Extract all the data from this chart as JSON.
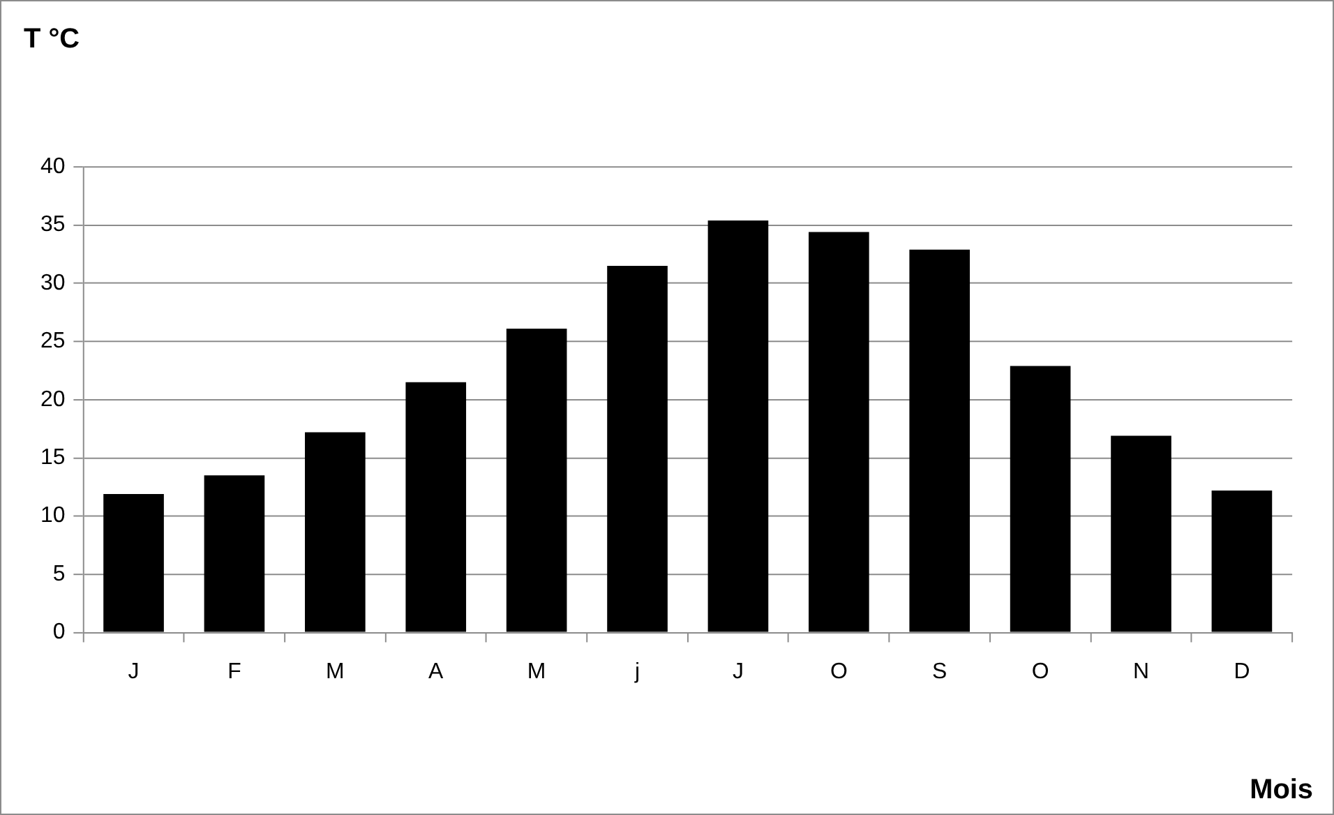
{
  "chart_data": {
    "type": "bar",
    "xlabel": "Mois",
    "ylabel": "T °C",
    "categories": [
      "J",
      "F",
      "M",
      "A",
      "M",
      "j",
      "J",
      "O",
      "S",
      "O",
      "N",
      "D"
    ],
    "values": [
      11.9,
      13.5,
      17.2,
      21.5,
      26.1,
      31.5,
      35.4,
      34.4,
      32.9,
      22.9,
      16.9,
      12.2
    ],
    "color": "#000000",
    "ylim": [
      0,
      40
    ],
    "yticks": [
      0,
      5,
      10,
      15,
      20,
      25,
      30,
      35,
      40
    ],
    "grid": "y",
    "legend": false
  }
}
